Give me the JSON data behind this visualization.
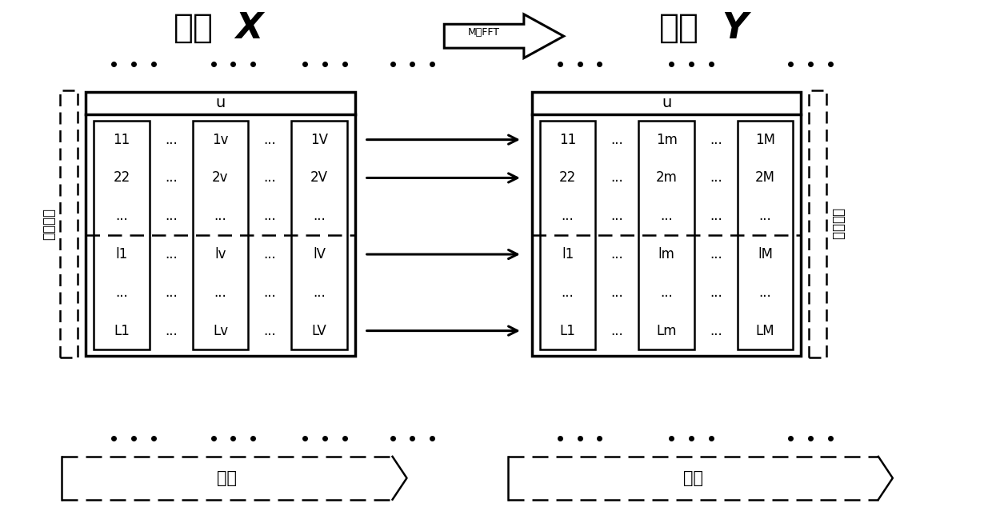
{
  "title_X_text": "矩阵",
  "title_X_bold": "X",
  "title_Y_text": "矩阵",
  "title_Y_bold": "Y",
  "arrow_label": "M点FFT",
  "header": "u",
  "matrix_X_cols": [
    [
      "11",
      "22",
      "...",
      "l1",
      "...",
      "L1"
    ],
    [
      "...",
      "...",
      "...",
      "...",
      "...",
      "..."
    ],
    [
      "1v",
      "2v",
      "...",
      "lv",
      "...",
      "Lv"
    ],
    [
      "...",
      "...",
      "...",
      "...",
      "...",
      "..."
    ],
    [
      "1V",
      "2V",
      "...",
      "lV",
      "...",
      "LV"
    ]
  ],
  "matrix_Y_cols": [
    [
      "11",
      "22",
      "...",
      "l1",
      "...",
      "L1"
    ],
    [
      "...",
      "...",
      "...",
      "...",
      "...",
      "..."
    ],
    [
      "1m",
      "2m",
      "...",
      "lm",
      "...",
      "Lm"
    ],
    [
      "...",
      "...",
      "...",
      "...",
      "...",
      "..."
    ],
    [
      "1M",
      "2M",
      "...",
      "lM",
      "...",
      "LM"
    ]
  ],
  "col_is_data": [
    true,
    false,
    true,
    false,
    true
  ],
  "side_label": "伪码相位",
  "bottom_label_X": "时间",
  "bottom_label_Y": "频率",
  "bg_color": "#ffffff"
}
